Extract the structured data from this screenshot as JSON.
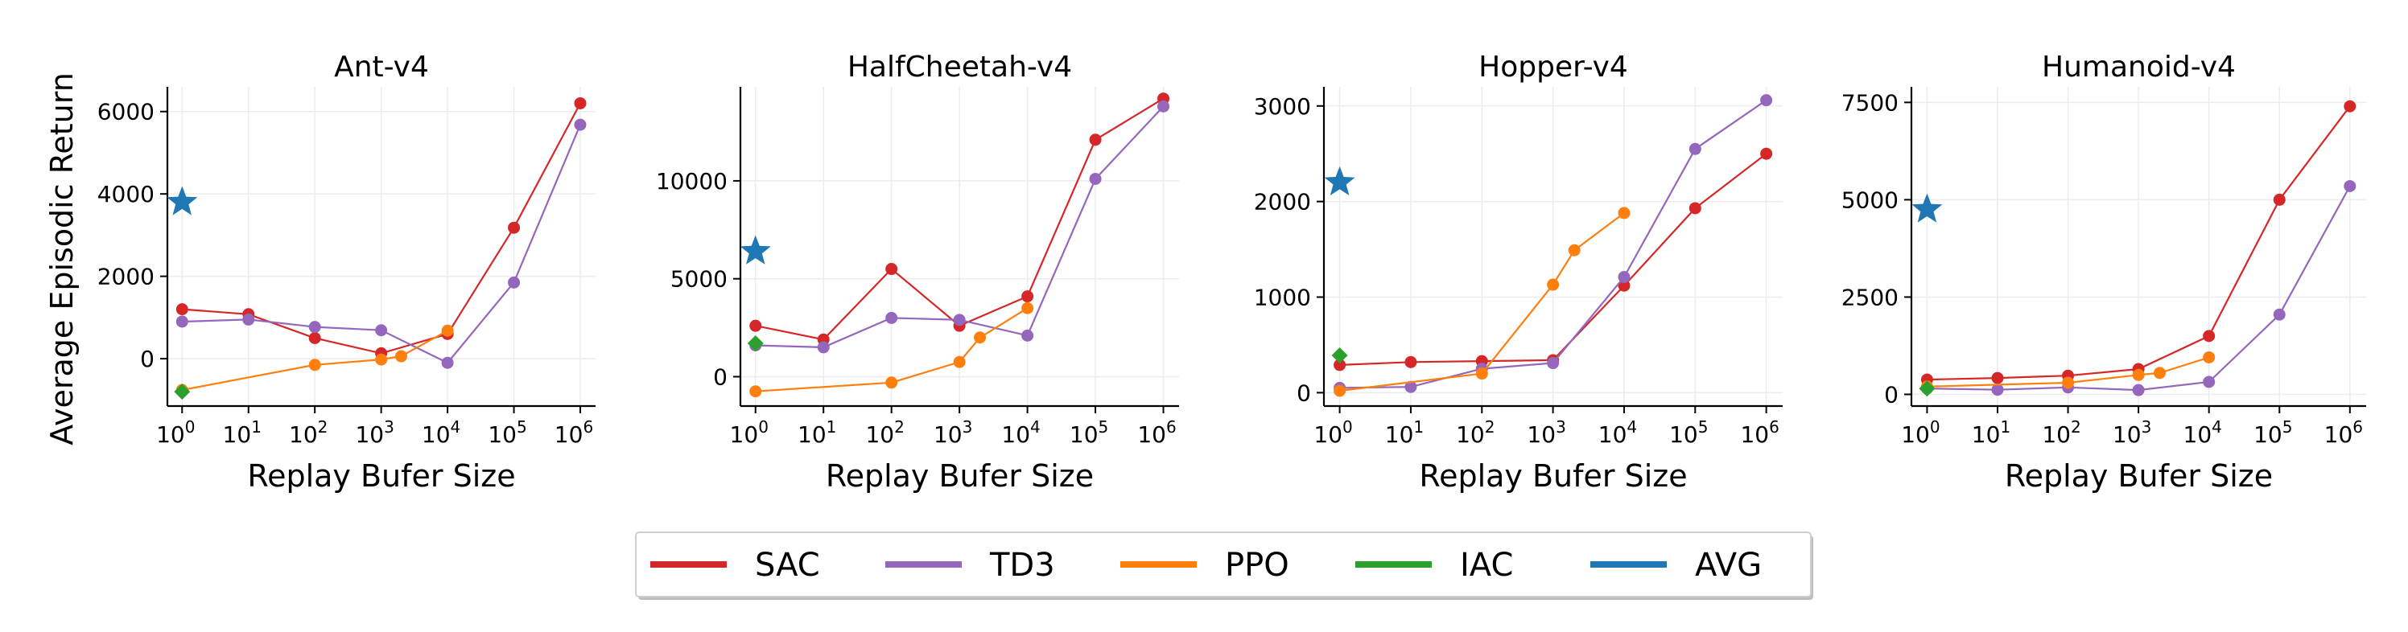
{
  "figure": {
    "ylabel": "Average Episodic Return",
    "xlabel": "Replay Bufer Size"
  },
  "colors": {
    "SAC": "#d62728",
    "TD3": "#9467bd",
    "PPO": "#ff7f0e",
    "IAC": "#2ca02c",
    "AVG": "#1f77b4"
  },
  "legend": [
    {
      "name": "SAC",
      "color_key": "SAC"
    },
    {
      "name": "TD3",
      "color_key": "TD3"
    },
    {
      "name": "PPO",
      "color_key": "PPO"
    },
    {
      "name": "IAC",
      "color_key": "IAC"
    },
    {
      "name": "AVG",
      "color_key": "AVG"
    }
  ],
  "chart_data": [
    {
      "type": "line",
      "title": "Ant-v4",
      "xlabel": "Replay Bufer Size",
      "ylabel": "Average Episodic Return",
      "xscale": "log",
      "xlim": [
        0.6,
        1700000
      ],
      "ylim": [
        -1150,
        6600
      ],
      "yticks": [
        0,
        2000,
        4000,
        6000
      ],
      "xticks": [
        1,
        10,
        100,
        1000,
        10000,
        100000,
        1000000
      ],
      "xtick_labels": [
        "10^0",
        "10^1",
        "10^2",
        "10^3",
        "10^4",
        "10^5",
        "10^6"
      ],
      "grid": true,
      "series": [
        {
          "name": "SAC",
          "style": "line",
          "x": [
            1,
            10,
            100,
            1000,
            10000,
            100000,
            1000000
          ],
          "y": [
            1200,
            1080,
            500,
            130,
            600,
            3180,
            6200
          ]
        },
        {
          "name": "TD3",
          "style": "line",
          "x": [
            1,
            10,
            100,
            1000,
            10000,
            100000,
            1000000
          ],
          "y": [
            900,
            950,
            770,
            690,
            -100,
            1850,
            5680
          ]
        },
        {
          "name": "PPO",
          "style": "line",
          "x": [
            1,
            100,
            1000,
            2000,
            10000
          ],
          "y": [
            -760,
            -150,
            -20,
            60,
            680
          ]
        },
        {
          "name": "IAC",
          "style": "diamond",
          "x": [
            1
          ],
          "y": [
            -800
          ]
        },
        {
          "name": "AVG",
          "style": "star",
          "x": [
            1
          ],
          "y": [
            3800
          ]
        }
      ]
    },
    {
      "type": "line",
      "title": "HalfCheetah-v4",
      "xlabel": "Replay Bufer Size",
      "ylabel": "",
      "xscale": "log",
      "xlim": [
        0.6,
        1700000
      ],
      "ylim": [
        -1500,
        14800
      ],
      "yticks": [
        0,
        5000,
        10000
      ],
      "xticks": [
        1,
        10,
        100,
        1000,
        10000,
        100000,
        1000000
      ],
      "xtick_labels": [
        "10^0",
        "10^1",
        "10^2",
        "10^3",
        "10^4",
        "10^5",
        "10^6"
      ],
      "grid": true,
      "series": [
        {
          "name": "SAC",
          "style": "line",
          "x": [
            1,
            10,
            100,
            1000,
            10000,
            100000,
            1000000
          ],
          "y": [
            2600,
            1900,
            5500,
            2600,
            4100,
            12100,
            14200
          ]
        },
        {
          "name": "TD3",
          "style": "line",
          "x": [
            1,
            10,
            100,
            1000,
            10000,
            100000,
            1000000
          ],
          "y": [
            1600,
            1500,
            3000,
            2900,
            2100,
            10100,
            13800
          ]
        },
        {
          "name": "PPO",
          "style": "line",
          "x": [
            1,
            100,
            1000,
            2000,
            10000
          ],
          "y": [
            -750,
            -300,
            750,
            2000,
            3500
          ]
        },
        {
          "name": "IAC",
          "style": "diamond",
          "x": [
            1
          ],
          "y": [
            1700
          ]
        },
        {
          "name": "AVG",
          "style": "star",
          "x": [
            1
          ],
          "y": [
            6400
          ]
        }
      ]
    },
    {
      "type": "line",
      "title": "Hopper-v4",
      "xlabel": "Replay Bufer Size",
      "ylabel": "",
      "xscale": "log",
      "xlim": [
        0.6,
        1700000
      ],
      "ylim": [
        -140,
        3200
      ],
      "yticks": [
        0,
        1000,
        2000,
        3000
      ],
      "xticks": [
        1,
        10,
        100,
        1000,
        10000,
        100000,
        1000000
      ],
      "xtick_labels": [
        "10^0",
        "10^1",
        "10^2",
        "10^3",
        "10^4",
        "10^5",
        "10^6"
      ],
      "grid": true,
      "series": [
        {
          "name": "SAC",
          "style": "line",
          "x": [
            1,
            10,
            100,
            1000,
            10000,
            100000,
            1000000
          ],
          "y": [
            290,
            320,
            330,
            340,
            1120,
            1930,
            2500
          ]
        },
        {
          "name": "TD3",
          "style": "line",
          "x": [
            1,
            10,
            100,
            1000,
            10000,
            100000,
            1000000
          ],
          "y": [
            50,
            60,
            250,
            310,
            1210,
            2550,
            3060
          ]
        },
        {
          "name": "PPO",
          "style": "line",
          "x": [
            1,
            100,
            1000,
            2000,
            10000
          ],
          "y": [
            20,
            200,
            1130,
            1490,
            1880
          ]
        },
        {
          "name": "IAC",
          "style": "diamond",
          "x": [
            1
          ],
          "y": [
            390
          ]
        },
        {
          "name": "AVG",
          "style": "star",
          "x": [
            1
          ],
          "y": [
            2200
          ]
        }
      ]
    },
    {
      "type": "line",
      "title": "Humanoid-v4",
      "xlabel": "Replay Bufer Size",
      "ylabel": "",
      "xscale": "log",
      "xlim": [
        0.6,
        1700000
      ],
      "ylim": [
        -300,
        7900
      ],
      "yticks": [
        0,
        2500,
        5000,
        7500
      ],
      "xticks": [
        1,
        10,
        100,
        1000,
        10000,
        100000,
        1000000
      ],
      "xtick_labels": [
        "10^0",
        "10^1",
        "10^2",
        "10^3",
        "10^4",
        "10^5",
        "10^6"
      ],
      "grid": true,
      "series": [
        {
          "name": "SAC",
          "style": "line",
          "x": [
            1,
            10,
            100,
            1000,
            10000,
            100000,
            1000000
          ],
          "y": [
            380,
            420,
            480,
            650,
            1500,
            5000,
            7400
          ]
        },
        {
          "name": "TD3",
          "style": "line",
          "x": [
            1,
            10,
            100,
            1000,
            10000,
            100000,
            1000000
          ],
          "y": [
            150,
            120,
            180,
            110,
            320,
            2050,
            5350
          ]
        },
        {
          "name": "PPO",
          "style": "line",
          "x": [
            1,
            100,
            1000,
            2000,
            10000
          ],
          "y": [
            200,
            300,
            500,
            550,
            950
          ]
        },
        {
          "name": "IAC",
          "style": "diamond",
          "x": [
            1
          ],
          "y": [
            150
          ]
        },
        {
          "name": "AVG",
          "style": "star",
          "x": [
            1
          ],
          "y": [
            4750
          ]
        }
      ]
    }
  ]
}
